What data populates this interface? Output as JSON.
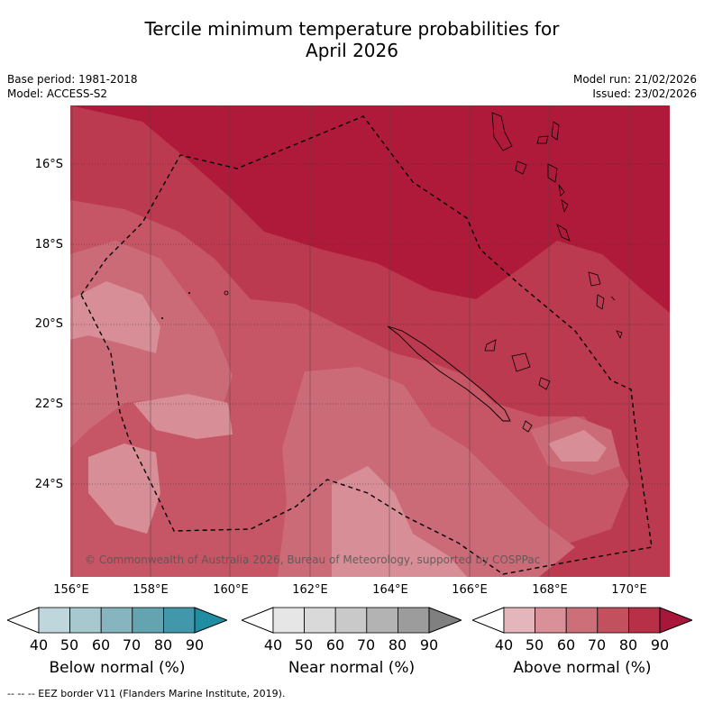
{
  "title_line1": "Tercile minimum temperature probabilities for",
  "title_line2": "April 2026",
  "base_period": "Base period: 1981-2018",
  "model": "Model: ACCESS-S2",
  "model_run": "Model run: 21/02/2026",
  "issued": "Issued: 23/02/2026",
  "copyright": "© Commonwealth of Australia 2026, Bureau of Meteorology, supported by COSPPac",
  "lat_labels": [
    "16°S",
    "18°S",
    "20°S",
    "22°S",
    "24°S"
  ],
  "lon_labels": [
    "156°E",
    "158°E",
    "160°E",
    "162°E",
    "164°E",
    "166°E",
    "168°E",
    "170°E"
  ],
  "legends": [
    {
      "title": "Below normal (%)",
      "ticks": [
        "40",
        "50",
        "60",
        "70",
        "80",
        "90"
      ],
      "colors": [
        "#c0d6dd",
        "#a7c8cf",
        "#86b5c0",
        "#64a3b0",
        "#4298aa",
        "#1f8ea3"
      ]
    },
    {
      "title": "Near normal (%)",
      "ticks": [
        "40",
        "50",
        "60",
        "70",
        "80",
        "90"
      ],
      "colors": [
        "#e6e6e6",
        "#d9d9d9",
        "#c9c9c9",
        "#b3b3b3",
        "#9c9c9c",
        "#808080"
      ]
    },
    {
      "title": "Above normal (%)",
      "ticks": [
        "40",
        "50",
        "60",
        "70",
        "80",
        "90"
      ],
      "colors": [
        "#e4b6bc",
        "#d99098",
        "#cd6f78",
        "#c3505d",
        "#b83047",
        "#a8163a"
      ]
    }
  ],
  "footnote": "-- -- -- EEZ border V11 (Flanders Marine Institute, 2019)."
}
